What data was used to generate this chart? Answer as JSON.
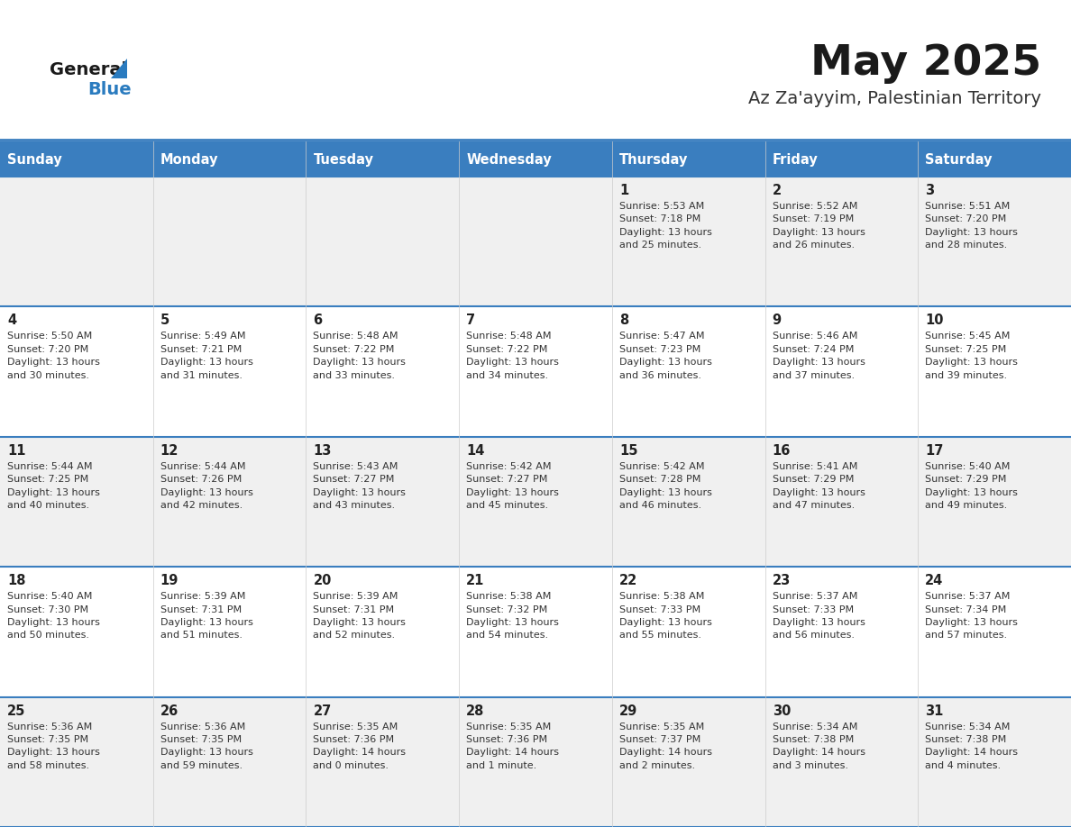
{
  "title": "May 2025",
  "subtitle": "Az Za'ayyim, Palestinian Territory",
  "days_of_week": [
    "Sunday",
    "Monday",
    "Tuesday",
    "Wednesday",
    "Thursday",
    "Friday",
    "Saturday"
  ],
  "header_bg": "#3a7ebf",
  "header_text": "#ffffff",
  "row_bg_odd": "#f0f0f0",
  "row_bg_even": "#ffffff",
  "separator_color": "#3a7ebf",
  "title_color": "#1a1a1a",
  "subtitle_color": "#333333",
  "day_number_color": "#222222",
  "cell_text_color": "#333333",
  "logo_general_color": "#1a1a1a",
  "logo_blue_color": "#2a7bbf",
  "logo_triangle_color": "#2a7bbf",
  "calendar": [
    [
      {
        "day": null,
        "info": null
      },
      {
        "day": null,
        "info": null
      },
      {
        "day": null,
        "info": null
      },
      {
        "day": null,
        "info": null
      },
      {
        "day": 1,
        "info": "Sunrise: 5:53 AM\nSunset: 7:18 PM\nDaylight: 13 hours\nand 25 minutes."
      },
      {
        "day": 2,
        "info": "Sunrise: 5:52 AM\nSunset: 7:19 PM\nDaylight: 13 hours\nand 26 minutes."
      },
      {
        "day": 3,
        "info": "Sunrise: 5:51 AM\nSunset: 7:20 PM\nDaylight: 13 hours\nand 28 minutes."
      }
    ],
    [
      {
        "day": 4,
        "info": "Sunrise: 5:50 AM\nSunset: 7:20 PM\nDaylight: 13 hours\nand 30 minutes."
      },
      {
        "day": 5,
        "info": "Sunrise: 5:49 AM\nSunset: 7:21 PM\nDaylight: 13 hours\nand 31 minutes."
      },
      {
        "day": 6,
        "info": "Sunrise: 5:48 AM\nSunset: 7:22 PM\nDaylight: 13 hours\nand 33 minutes."
      },
      {
        "day": 7,
        "info": "Sunrise: 5:48 AM\nSunset: 7:22 PM\nDaylight: 13 hours\nand 34 minutes."
      },
      {
        "day": 8,
        "info": "Sunrise: 5:47 AM\nSunset: 7:23 PM\nDaylight: 13 hours\nand 36 minutes."
      },
      {
        "day": 9,
        "info": "Sunrise: 5:46 AM\nSunset: 7:24 PM\nDaylight: 13 hours\nand 37 minutes."
      },
      {
        "day": 10,
        "info": "Sunrise: 5:45 AM\nSunset: 7:25 PM\nDaylight: 13 hours\nand 39 minutes."
      }
    ],
    [
      {
        "day": 11,
        "info": "Sunrise: 5:44 AM\nSunset: 7:25 PM\nDaylight: 13 hours\nand 40 minutes."
      },
      {
        "day": 12,
        "info": "Sunrise: 5:44 AM\nSunset: 7:26 PM\nDaylight: 13 hours\nand 42 minutes."
      },
      {
        "day": 13,
        "info": "Sunrise: 5:43 AM\nSunset: 7:27 PM\nDaylight: 13 hours\nand 43 minutes."
      },
      {
        "day": 14,
        "info": "Sunrise: 5:42 AM\nSunset: 7:27 PM\nDaylight: 13 hours\nand 45 minutes."
      },
      {
        "day": 15,
        "info": "Sunrise: 5:42 AM\nSunset: 7:28 PM\nDaylight: 13 hours\nand 46 minutes."
      },
      {
        "day": 16,
        "info": "Sunrise: 5:41 AM\nSunset: 7:29 PM\nDaylight: 13 hours\nand 47 minutes."
      },
      {
        "day": 17,
        "info": "Sunrise: 5:40 AM\nSunset: 7:29 PM\nDaylight: 13 hours\nand 49 minutes."
      }
    ],
    [
      {
        "day": 18,
        "info": "Sunrise: 5:40 AM\nSunset: 7:30 PM\nDaylight: 13 hours\nand 50 minutes."
      },
      {
        "day": 19,
        "info": "Sunrise: 5:39 AM\nSunset: 7:31 PM\nDaylight: 13 hours\nand 51 minutes."
      },
      {
        "day": 20,
        "info": "Sunrise: 5:39 AM\nSunset: 7:31 PM\nDaylight: 13 hours\nand 52 minutes."
      },
      {
        "day": 21,
        "info": "Sunrise: 5:38 AM\nSunset: 7:32 PM\nDaylight: 13 hours\nand 54 minutes."
      },
      {
        "day": 22,
        "info": "Sunrise: 5:38 AM\nSunset: 7:33 PM\nDaylight: 13 hours\nand 55 minutes."
      },
      {
        "day": 23,
        "info": "Sunrise: 5:37 AM\nSunset: 7:33 PM\nDaylight: 13 hours\nand 56 minutes."
      },
      {
        "day": 24,
        "info": "Sunrise: 5:37 AM\nSunset: 7:34 PM\nDaylight: 13 hours\nand 57 minutes."
      }
    ],
    [
      {
        "day": 25,
        "info": "Sunrise: 5:36 AM\nSunset: 7:35 PM\nDaylight: 13 hours\nand 58 minutes."
      },
      {
        "day": 26,
        "info": "Sunrise: 5:36 AM\nSunset: 7:35 PM\nDaylight: 13 hours\nand 59 minutes."
      },
      {
        "day": 27,
        "info": "Sunrise: 5:35 AM\nSunset: 7:36 PM\nDaylight: 14 hours\nand 0 minutes."
      },
      {
        "day": 28,
        "info": "Sunrise: 5:35 AM\nSunset: 7:36 PM\nDaylight: 14 hours\nand 1 minute."
      },
      {
        "day": 29,
        "info": "Sunrise: 5:35 AM\nSunset: 7:37 PM\nDaylight: 14 hours\nand 2 minutes."
      },
      {
        "day": 30,
        "info": "Sunrise: 5:34 AM\nSunset: 7:38 PM\nDaylight: 14 hours\nand 3 minutes."
      },
      {
        "day": 31,
        "info": "Sunrise: 5:34 AM\nSunset: 7:38 PM\nDaylight: 14 hours\nand 4 minutes."
      }
    ]
  ]
}
